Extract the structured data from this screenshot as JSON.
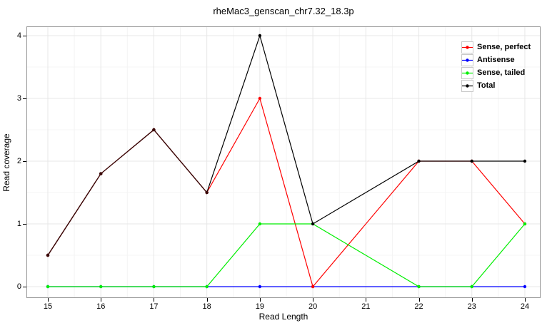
{
  "chart_data": {
    "type": "line",
    "title": "rheMac3_genscan_chr7.32_18.3p",
    "xlabel": "Read Length",
    "ylabel": "Read coverage",
    "x": [
      15,
      16,
      17,
      18,
      19,
      20,
      22,
      23,
      24
    ],
    "x_ticks": [
      15,
      16,
      17,
      18,
      19,
      20,
      21,
      22,
      23,
      24
    ],
    "y_ticks": [
      0,
      1,
      2,
      3,
      4
    ],
    "xlim": [
      14.6,
      24.3
    ],
    "ylim": [
      -0.17,
      4.15
    ],
    "grid": "major and minor gridlines, light gray on white",
    "legend_position": "top-right inside panel",
    "series": [
      {
        "name": "Sense, perfect",
        "color": "#FF0000",
        "values": [
          0.5,
          1.8,
          2.5,
          1.5,
          3,
          0,
          2,
          2,
          1
        ]
      },
      {
        "name": "Antisense",
        "color": "#0000FF",
        "values": [
          0,
          0,
          0,
          0,
          0,
          0,
          0,
          0,
          0
        ]
      },
      {
        "name": "Sense, tailed",
        "color": "#00EE00",
        "values": [
          0,
          0,
          0,
          0,
          1,
          1,
          0,
          0,
          1
        ]
      },
      {
        "name": "Total",
        "color": "#000000",
        "values": [
          0.5,
          1.8,
          2.5,
          1.5,
          4,
          1,
          2,
          2,
          2
        ]
      }
    ],
    "overlap_highlight": {
      "note": "Sense-perfect and Total coincide from x=15 to 18; rendered as dark maroon",
      "x": [
        15,
        16,
        17,
        18
      ],
      "values": [
        0.5,
        1.8,
        2.5,
        1.5
      ],
      "color": "#3A0808"
    },
    "style": {
      "panel_border_color": "#959595",
      "grid_major_color": "#e7e7e7",
      "grid_minor_color": "#f4f4f4",
      "line_width": 1.2,
      "marker_radius": 2.2
    }
  }
}
